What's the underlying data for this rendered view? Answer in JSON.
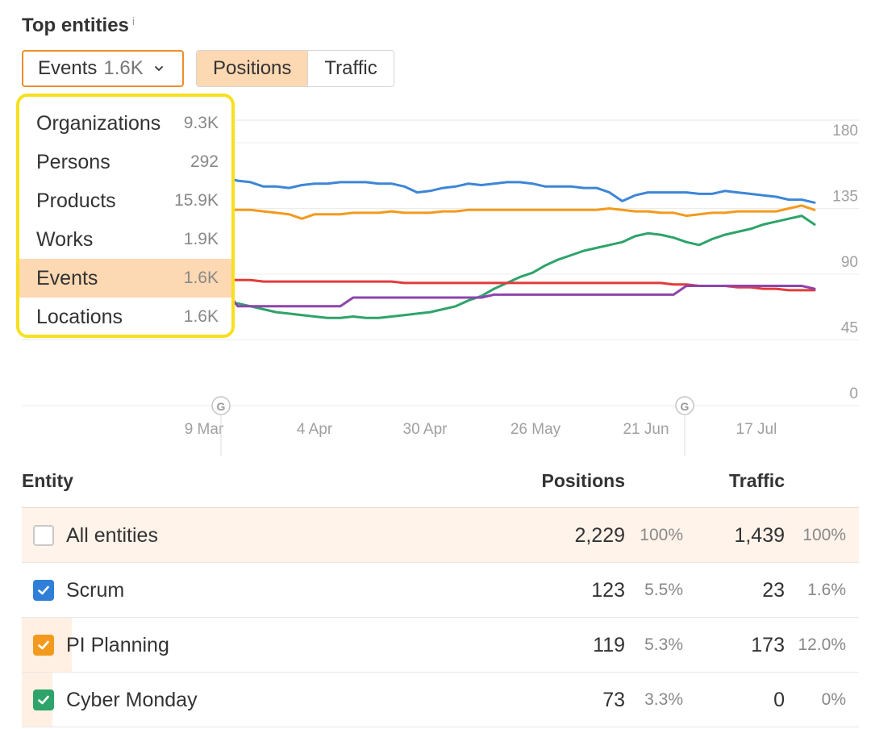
{
  "header": {
    "title": "Top entities",
    "info": "i"
  },
  "dropdown": {
    "label": "Events",
    "count": "1.6K"
  },
  "segment": {
    "options": [
      "Positions",
      "Traffic"
    ],
    "active": "Positions"
  },
  "menu": {
    "items": [
      {
        "label": "Organizations",
        "count": "9.3K"
      },
      {
        "label": "Persons",
        "count": "292"
      },
      {
        "label": "Products",
        "count": "15.9K"
      },
      {
        "label": "Works",
        "count": "1.9K"
      },
      {
        "label": "Events",
        "count": "1.6K",
        "selected": true
      },
      {
        "label": "Locations",
        "count": "1.6K"
      }
    ]
  },
  "chart_data": {
    "type": "line",
    "x_ticks": [
      "9 Mar",
      "4 Apr",
      "30 Apr",
      "26 May",
      "21 Jun",
      "17 Jul"
    ],
    "y_ticks": [
      "180",
      "135",
      "90",
      "45",
      "0"
    ],
    "ylim": [
      0,
      180
    ],
    "annotations": [
      "G",
      "G"
    ],
    "series": [
      {
        "color": "#3d86d6",
        "values": [
          169,
          166,
          163,
          164,
          165,
          164,
          163,
          162,
          160,
          158,
          156,
          154,
          153,
          150,
          150,
          149,
          151,
          152,
          152,
          153,
          153,
          153,
          152,
          152,
          150,
          146,
          147,
          149,
          150,
          152,
          151,
          152,
          153,
          153,
          152,
          150,
          150,
          150,
          149,
          149,
          146,
          140,
          144,
          146,
          146,
          146,
          146,
          145,
          145,
          147,
          146,
          145,
          144,
          143,
          141,
          141,
          139
        ]
      },
      {
        "color": "#f39a1e",
        "values": [
          138,
          137,
          136,
          136,
          136,
          136,
          135,
          135,
          135,
          135,
          134,
          134,
          134,
          133,
          132,
          131,
          128,
          131,
          131,
          131,
          132,
          132,
          132,
          133,
          132,
          132,
          132,
          133,
          133,
          134,
          134,
          134,
          134,
          134,
          134,
          134,
          134,
          134,
          134,
          134,
          135,
          134,
          133,
          133,
          132,
          132,
          130,
          131,
          132,
          132,
          133,
          133,
          133,
          133,
          135,
          137,
          134
        ]
      },
      {
        "color": "#2ea36a",
        "values": [
          70,
          72,
          75,
          78,
          80,
          78,
          76,
          74,
          72,
          71,
          70,
          70,
          68,
          66,
          64,
          63,
          62,
          61,
          60,
          60,
          61,
          60,
          60,
          61,
          62,
          63,
          64,
          66,
          68,
          72,
          75,
          80,
          84,
          88,
          91,
          96,
          100,
          103,
          106,
          108,
          110,
          112,
          116,
          118,
          117,
          115,
          112,
          110,
          114,
          117,
          119,
          121,
          124,
          126,
          128,
          130,
          124
        ]
      },
      {
        "color": "#e23b3b",
        "values": [
          84,
          84,
          84,
          85,
          86,
          86,
          86,
          86,
          86,
          86,
          86,
          86,
          86,
          85,
          85,
          85,
          85,
          85,
          85,
          85,
          85,
          85,
          85,
          85,
          84,
          84,
          84,
          84,
          84,
          84,
          84,
          84,
          84,
          84,
          84,
          84,
          84,
          84,
          84,
          84,
          84,
          84,
          84,
          84,
          84,
          83,
          83,
          82,
          82,
          82,
          81,
          81,
          80,
          80,
          79,
          79,
          79
        ]
      },
      {
        "color": "#8e44ad",
        "values": [
          80,
          80,
          80,
          80,
          80,
          80,
          80,
          80,
          80,
          80,
          80,
          68,
          68,
          68,
          68,
          68,
          68,
          68,
          68,
          68,
          74,
          74,
          74,
          74,
          74,
          74,
          74,
          74,
          74,
          74,
          74,
          76,
          76,
          76,
          76,
          76,
          76,
          76,
          76,
          76,
          76,
          76,
          76,
          76,
          76,
          76,
          82,
          82,
          82,
          82,
          82,
          82,
          82,
          82,
          82,
          82,
          80
        ]
      }
    ]
  },
  "table": {
    "headers": {
      "entity": "Entity",
      "positions": "Positions",
      "traffic": "Traffic"
    },
    "rows": [
      {
        "name": "All entities",
        "positions": "2,229",
        "positions_pct": "100%",
        "traffic": "1,439",
        "traffic_pct": "100%",
        "checked": false,
        "share": 1.0
      },
      {
        "name": "Scrum",
        "positions": "123",
        "positions_pct": "5.5%",
        "traffic": "23",
        "traffic_pct": "1.6%",
        "checked": true,
        "color": "#2f7fd8",
        "share": 0.016
      },
      {
        "name": "PI Planning",
        "positions": "119",
        "positions_pct": "5.3%",
        "traffic": "173",
        "traffic_pct": "12.0%",
        "checked": true,
        "color": "#f39a1e",
        "share": 0.12
      },
      {
        "name": "Cyber Monday",
        "positions": "73",
        "positions_pct": "3.3%",
        "traffic": "0",
        "traffic_pct": "0%",
        "checked": true,
        "color": "#2ea36a",
        "share": 0.0
      }
    ]
  }
}
